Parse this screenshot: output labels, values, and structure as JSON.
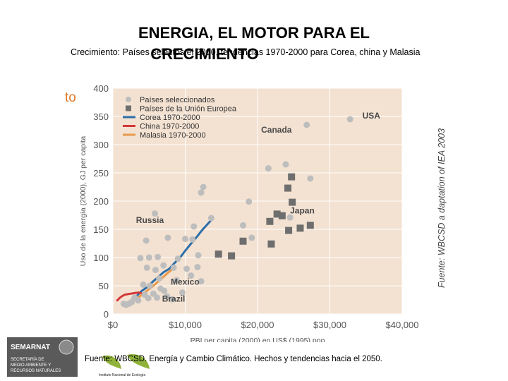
{
  "header": {
    "title_line1": "ENERGIA, EL MOTOR PARA EL",
    "title_line2": "CRECIMIENTO",
    "subtitle": "Crecimiento: Países selectos el 2000, tendencias 1970-2000 para Corea, china y Malasia",
    "side_fragment": "to"
  },
  "side_source": "Fuente: WBCSD a daptation of IEA 2003",
  "footer": {
    "source": "Fuente: WBCSD. Energía y Cambio Climático. Hechos y tendencias hacia el 2050.",
    "semarnat": "SEMARNAT",
    "semarnat_lines": [
      "SECRETARÍA DE",
      "MEDIO AMBIENTE Y",
      "RECURSOS NATURALES"
    ],
    "ine": "Instituto Nacional de Ecología"
  },
  "colors": {
    "plot_bg": "#f3e2d2",
    "grid": "#ffffff",
    "selected": "#bdbdbd",
    "eu": "#6e6e6e",
    "korea": "#2d6ea8",
    "china": "#d43838",
    "malaysia": "#e79a4c",
    "axis_text": "#555555",
    "semarnat_bg": "#5a5a5a"
  },
  "chart_data": {
    "type": "scatter",
    "title": "",
    "xlabel": "PBI per capita (2000) en US$ (1995) ppp",
    "ylabel": "Uso de la energía (2000), GJ per capita",
    "xlim": [
      0,
      40000
    ],
    "ylim": [
      0,
      400
    ],
    "xticks": [
      0,
      10000,
      20000,
      30000,
      40000
    ],
    "xtick_labels": [
      "$0",
      "$10,000",
      "$20,000",
      "$30,000",
      "$40,000"
    ],
    "yticks": [
      0,
      50,
      100,
      150,
      200,
      250,
      300,
      350,
      400
    ],
    "ytick_labels": [
      "0",
      "50",
      "100",
      "150",
      "200",
      "250",
      "300",
      "350",
      "400"
    ],
    "grid": true,
    "legend_position": "top-left",
    "legend": [
      "Países seleccionados",
      "Países de la Unión Europea",
      "Corea 1970-2000",
      "China 1970-2000",
      "Malasia 1970-2000"
    ],
    "annotations": [
      {
        "text": "USA",
        "x": 34500,
        "y": 346
      },
      {
        "text": "Canada",
        "x": 20500,
        "y": 321
      },
      {
        "text": "Russia",
        "x": 3200,
        "y": 161
      },
      {
        "text": "Japan",
        "x": 24500,
        "y": 178
      },
      {
        "text": "Mexico",
        "x": 8000,
        "y": 52
      },
      {
        "text": "Brazil",
        "x": 6800,
        "y": 22
      }
    ],
    "series": [
      {
        "name": "Países seleccionados",
        "kind": "scatter",
        "points": [
          [
            32800,
            345
          ],
          [
            26800,
            335
          ],
          [
            21500,
            258
          ],
          [
            23900,
            265
          ],
          [
            27300,
            240
          ],
          [
            12500,
            225
          ],
          [
            12200,
            215
          ],
          [
            5800,
            178
          ],
          [
            18800,
            199
          ],
          [
            13600,
            170
          ],
          [
            11200,
            155
          ],
          [
            18000,
            157
          ],
          [
            19200,
            135
          ],
          [
            24500,
            171
          ],
          [
            7600,
            135
          ],
          [
            4600,
            130
          ],
          [
            10000,
            133
          ],
          [
            11000,
            132
          ],
          [
            3800,
            99
          ],
          [
            5000,
            100
          ],
          [
            6200,
            101
          ],
          [
            9000,
            98
          ],
          [
            11800,
            104
          ],
          [
            7000,
            86
          ],
          [
            8400,
            82
          ],
          [
            10200,
            80
          ],
          [
            11700,
            83
          ],
          [
            4700,
            82
          ],
          [
            5900,
            78
          ],
          [
            10800,
            68
          ],
          [
            6400,
            63
          ],
          [
            8800,
            60
          ],
          [
            4200,
            52
          ],
          [
            5100,
            50
          ],
          [
            6600,
            45
          ],
          [
            7100,
            41
          ],
          [
            9600,
            38
          ],
          [
            5600,
            36
          ],
          [
            4400,
            34
          ],
          [
            6100,
            29
          ],
          [
            3000,
            29
          ],
          [
            2600,
            21
          ],
          [
            1500,
            18
          ],
          [
            1800,
            16
          ],
          [
            2200,
            18
          ],
          [
            4900,
            28
          ],
          [
            3500,
            24
          ],
          [
            7500,
            31
          ],
          [
            8200,
            26
          ],
          [
            12200,
            58
          ]
        ]
      },
      {
        "name": "Países de la Unión Europea",
        "kind": "scatter",
        "points": [
          [
            24700,
            243
          ],
          [
            24200,
            223
          ],
          [
            24800,
            198
          ],
          [
            22700,
            177
          ],
          [
            23400,
            174
          ],
          [
            21700,
            164
          ],
          [
            27300,
            157
          ],
          [
            24300,
            148
          ],
          [
            25900,
            152
          ],
          [
            14600,
            106
          ],
          [
            16400,
            103
          ],
          [
            18000,
            129
          ],
          [
            21900,
            124
          ]
        ]
      },
      {
        "name": "Corea 1970-2000",
        "kind": "line",
        "points": [
          [
            1900,
            19
          ],
          [
            2600,
            25
          ],
          [
            3300,
            32
          ],
          [
            4000,
            41
          ],
          [
            4800,
            48
          ],
          [
            5500,
            57
          ],
          [
            6300,
            66
          ],
          [
            7000,
            74
          ],
          [
            7800,
            80
          ],
          [
            8500,
            90
          ],
          [
            9300,
            100
          ],
          [
            10000,
            112
          ],
          [
            10700,
            123
          ],
          [
            11500,
            135
          ],
          [
            12300,
            148
          ],
          [
            13000,
            158
          ],
          [
            13500,
            165
          ]
        ]
      },
      {
        "name": "China 1970-2000",
        "kind": "line",
        "points": [
          [
            600,
            24
          ],
          [
            900,
            28
          ],
          [
            1200,
            31
          ],
          [
            1600,
            34
          ],
          [
            2000,
            35
          ],
          [
            2500,
            36
          ],
          [
            3000,
            37
          ],
          [
            3500,
            38
          ],
          [
            3900,
            37
          ]
        ]
      },
      {
        "name": "Malasia 1970-2000",
        "kind": "line",
        "points": [
          [
            2200,
            20
          ],
          [
            3000,
            25
          ],
          [
            3800,
            32
          ],
          [
            4600,
            40
          ],
          [
            5500,
            49
          ],
          [
            6300,
            58
          ],
          [
            7000,
            66
          ],
          [
            7700,
            74
          ],
          [
            8300,
            80
          ]
        ]
      }
    ]
  }
}
